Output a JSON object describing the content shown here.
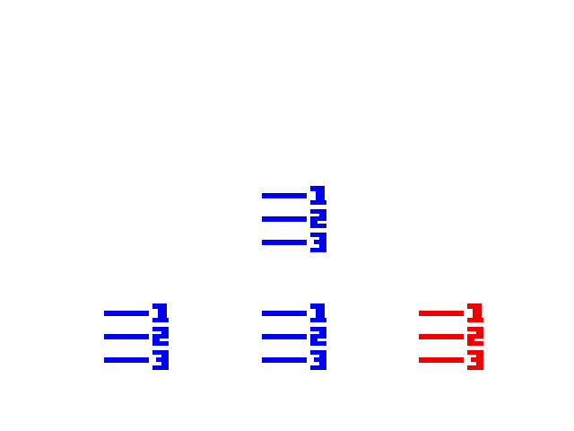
{
  "icons": [
    {
      "id": "icon-top",
      "name": "ordered-list-icon",
      "color": "#0000ee",
      "selected": false
    },
    {
      "id": "icon-left",
      "name": "ordered-list-icon",
      "color": "#0000ee",
      "selected": false
    },
    {
      "id": "icon-center",
      "name": "ordered-list-icon",
      "color": "#0000ee",
      "selected": false
    },
    {
      "id": "icon-right",
      "name": "ordered-list-icon",
      "color": "#ee0000",
      "selected": true
    }
  ]
}
